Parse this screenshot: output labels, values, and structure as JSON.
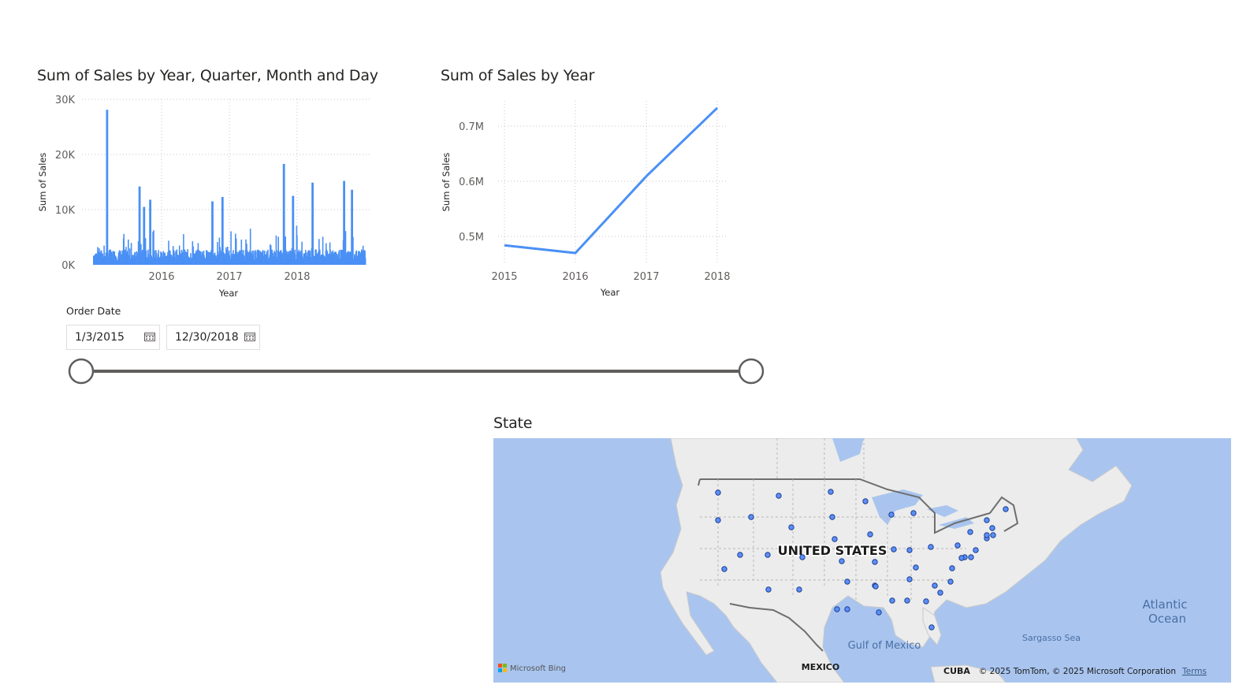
{
  "chart1": {
    "title": "Sum of Sales by Year, Quarter, Month and Day",
    "xlabel": "Year",
    "ylabel": "Sum of Sales",
    "y_ticks": [
      "30K",
      "20K",
      "10K",
      "0K"
    ],
    "x_ticks": [
      "2016",
      "2017",
      "2018"
    ],
    "bar_color": "#4a90f5"
  },
  "chart2": {
    "title": "Sum of Sales by Year",
    "xlabel": "Year",
    "ylabel": "Sum of Sales",
    "y_ticks": [
      "0.7M",
      "0.6M",
      "0.5M"
    ],
    "x_ticks": [
      "2015",
      "2016",
      "2017",
      "2018"
    ],
    "line_color": "#4a90f5"
  },
  "chart_data": [
    {
      "type": "bar",
      "title": "Sum of Sales by Year, Quarter, Month and Day",
      "xlabel": "Year",
      "ylabel": "Sum of Sales",
      "ylim": [
        0,
        30000
      ],
      "x_range": [
        "2015-01-03",
        "2018-12-30"
      ],
      "grid": true,
      "peaks": [
        {
          "date": "2015-03-18",
          "value": 28100
        },
        {
          "date": "2015-09-08",
          "value": 14200
        },
        {
          "date": "2015-10-02",
          "value": 10500
        },
        {
          "date": "2015-11-04",
          "value": 11800
        },
        {
          "date": "2016-10-02",
          "value": 11500
        },
        {
          "date": "2016-11-25",
          "value": 12300
        },
        {
          "date": "2017-10-20",
          "value": 18300
        },
        {
          "date": "2017-12-08",
          "value": 12500
        },
        {
          "date": "2018-03-23",
          "value": 14900
        },
        {
          "date": "2018-09-08",
          "value": 15200
        },
        {
          "date": "2018-10-20",
          "value": 13600
        }
      ]
    },
    {
      "type": "line",
      "title": "Sum of Sales by Year",
      "xlabel": "Year",
      "ylabel": "Sum of Sales",
      "x": [
        2015,
        2016,
        2017,
        2018
      ],
      "values": [
        484000,
        470000,
        609000,
        733000
      ],
      "ylim": [
        450000,
        750000
      ],
      "grid": true
    }
  ],
  "slicer": {
    "label": "Order Date",
    "start": "1/3/2015",
    "end": "12/30/2018",
    "start_value": 0,
    "end_value": 1
  },
  "map": {
    "title": "State",
    "labels": {
      "country": "UNITED STATES",
      "gulf": "Gulf of Mexico",
      "ocean1": "Atlantic",
      "ocean2": "Ocean",
      "sargasso": "Sargasso Sea",
      "mexico": "MEXICO",
      "cuba": "CUBA"
    },
    "brand": "Microsoft Bing",
    "copyright": "© 2025 TomTom, © 2025 Microsoft Corporation",
    "terms": "Terms",
    "water_color": "#a9c5ef",
    "land_color": "#ededed",
    "dot_color": "#5b8ff9"
  }
}
